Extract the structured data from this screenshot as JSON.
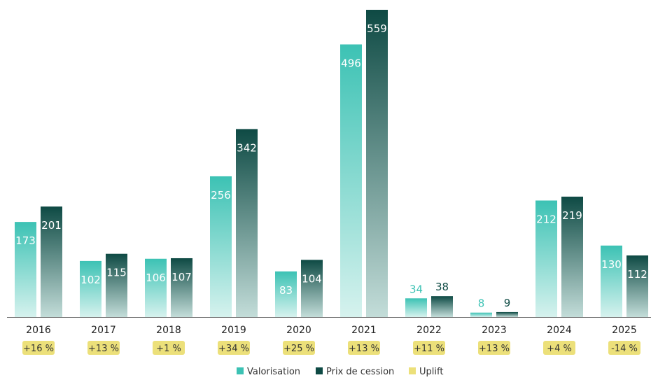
{
  "chart_data": {
    "type": "bar",
    "title": "",
    "xlabel": "",
    "ylabel": "",
    "categories": [
      "2016",
      "2017",
      "2018",
      "2019",
      "2020",
      "2021",
      "2022",
      "2023",
      "2024",
      "2025"
    ],
    "series": [
      {
        "name": "Valorisation",
        "values": [
          173,
          102,
          106,
          256,
          83,
          496,
          34,
          8,
          212,
          130
        ],
        "color": "#3cc2b4"
      },
      {
        "name": "Prix de cession",
        "values": [
          201,
          115,
          107,
          342,
          104,
          559,
          38,
          9,
          219,
          112
        ],
        "color": "#0e4a44"
      }
    ],
    "uplift": {
      "name": "Uplift",
      "labels": [
        "+16 %",
        "+13 %",
        "+1 %",
        "+34 %",
        "+25 %",
        "+13 %",
        "+11 %",
        "+13 %",
        "+4 %",
        "-14 %"
      ],
      "color": "#ece07a"
    },
    "ylim": [
      0,
      559
    ],
    "grid": false,
    "legend_position": "bottom-center"
  }
}
